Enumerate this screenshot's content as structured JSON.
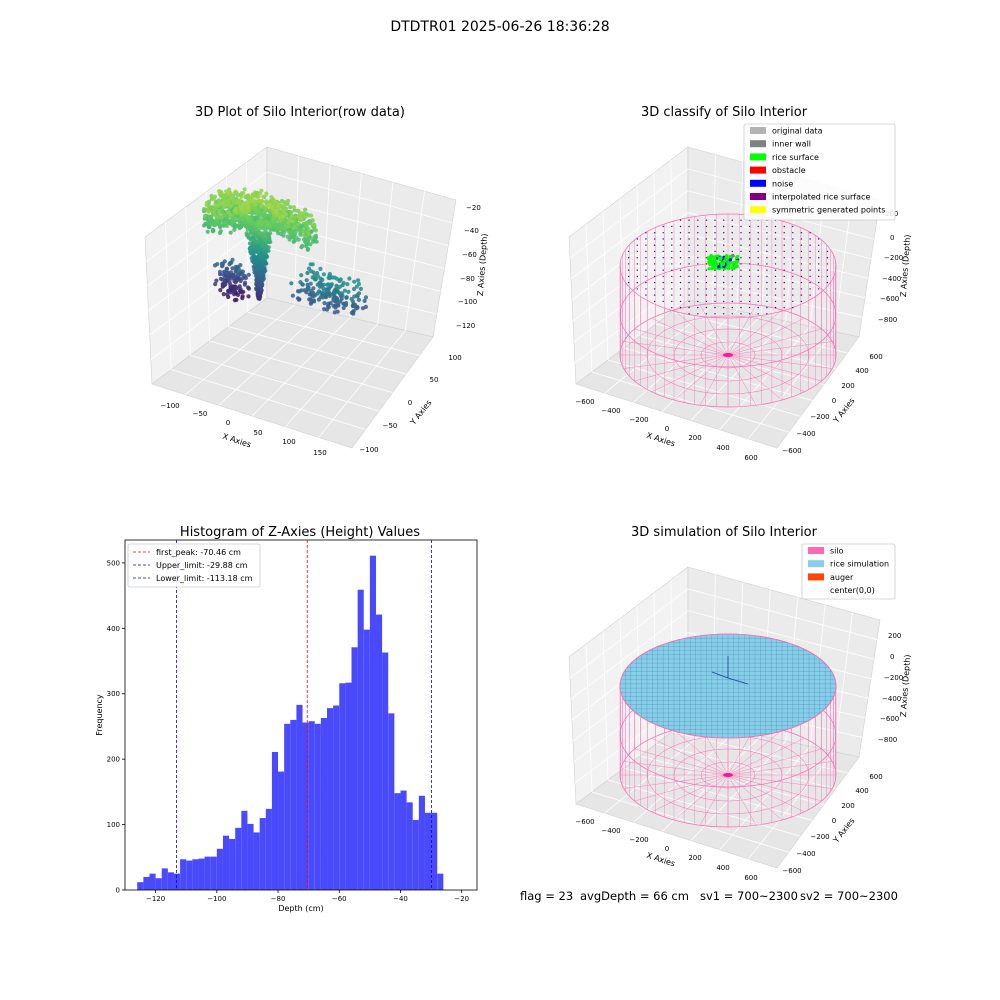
{
  "figure": {
    "suptitle": "DTDTR01 2025-06-26 18:36:28",
    "status": {
      "flag": "flag = 23",
      "avg_depth": "avgDepth = 66 cm",
      "sv1": "sv1 = 700~2300",
      "sv2": "sv2 = 700~2300"
    }
  },
  "chart_data": [
    {
      "type": "scatter",
      "projection": "3d",
      "title": "3D Plot of Silo Interior(row data)",
      "xlabel": "X Axies",
      "ylabel": "Y Axies",
      "zlabel": "Z Axies (Depth)",
      "x_ticks": [
        "−100",
        "−50",
        "0",
        "50",
        "100",
        "150"
      ],
      "y_ticks": [
        "−100",
        "−50",
        "0",
        "50",
        "100"
      ],
      "z_ticks": [
        "−20",
        "−40",
        "−60",
        "−80",
        "−100",
        "−120"
      ],
      "xlim": [
        -125,
        165
      ],
      "ylim": [
        -110,
        130
      ],
      "zlim": [
        -130,
        -15
      ],
      "colormap": "viridis",
      "grid": true
    },
    {
      "type": "scatter",
      "projection": "3d",
      "title": "3D classify of Silo Interior",
      "xlabel": "X Axies",
      "ylabel": "Y Axies",
      "zlabel": "Z Axies (Depth)",
      "x_ticks": [
        "−600",
        "−400",
        "−200",
        "0",
        "200",
        "400",
        "600"
      ],
      "y_ticks": [
        "−600",
        "−400",
        "−200",
        "0",
        "200",
        "400",
        "600"
      ],
      "z_ticks": [
        "200",
        "0",
        "−200",
        "−400",
        "−600",
        "−800"
      ],
      "legend_position": "top-right",
      "legend": [
        {
          "label": "original data",
          "color": "#b3b3b3"
        },
        {
          "label": "inner wall",
          "color": "#808080"
        },
        {
          "label": "rice surface",
          "color": "#00ff00"
        },
        {
          "label": "obstacle",
          "color": "#ff0000"
        },
        {
          "label": "noise",
          "color": "#0000ff"
        },
        {
          "label": "interpolated rice surface",
          "color": "#800080"
        },
        {
          "label": "symmetric generated points",
          "color": "#ffff00"
        }
      ],
      "grid": true
    },
    {
      "type": "bar",
      "title": "Histogram of Z-Axies (Height) Values",
      "xlabel": "Depth (cm)",
      "ylabel": "Frequency",
      "xlim": [
        -130,
        -15
      ],
      "ylim": [
        0,
        535
      ],
      "x_ticks": [
        -120,
        -100,
        -80,
        -60,
        -40,
        -20
      ],
      "y_ticks": [
        0,
        100,
        200,
        300,
        400,
        500
      ],
      "bar_color": "#4a4afd",
      "bin_start": -126,
      "bin_width": 2,
      "values": [
        12,
        20,
        25,
        18,
        33,
        27,
        25,
        47,
        45,
        47,
        48,
        51,
        51,
        63,
        83,
        78,
        95,
        121,
        101,
        88,
        110,
        124,
        211,
        181,
        254,
        260,
        283,
        256,
        258,
        254,
        263,
        278,
        282,
        316,
        317,
        371,
        459,
        398,
        511,
        421,
        363,
        270,
        148,
        152,
        134,
        107,
        144,
        118,
        118,
        25
      ],
      "lines": [
        {
          "label": "first_peak: -70.46 cm",
          "x": -70.46,
          "color": "#ff0000"
        },
        {
          "label": "Upper_limit: -29.88 cm",
          "x": -29.88,
          "color": "#0000ff"
        },
        {
          "label": "Lower_limit: -113.18 cm",
          "x": -113.18,
          "color": "#0000ff"
        }
      ],
      "legend_position": "top-left"
    },
    {
      "type": "surface",
      "projection": "3d",
      "title": "3D simulation of Silo Interior",
      "xlabel": "X Axies",
      "ylabel": "Y Axies",
      "zlabel": "Z Axies (Depth)",
      "x_ticks": [
        "−600",
        "−400",
        "−200",
        "0",
        "200",
        "400",
        "600"
      ],
      "y_ticks": [
        "−600",
        "−400",
        "−200",
        "0",
        "200",
        "400",
        "600"
      ],
      "z_ticks": [
        "200",
        "0",
        "−200",
        "−400",
        "−600",
        "−800"
      ],
      "legend_position": "top-right",
      "legend": [
        {
          "label": "silo",
          "color": "#ff69b4"
        },
        {
          "label": "rice simulation",
          "color": "#87ceeb"
        },
        {
          "label": "auger",
          "color": "#ff4500"
        },
        {
          "label": "center(0,0)",
          "color": "#ffffff"
        }
      ],
      "grid": true
    }
  ]
}
